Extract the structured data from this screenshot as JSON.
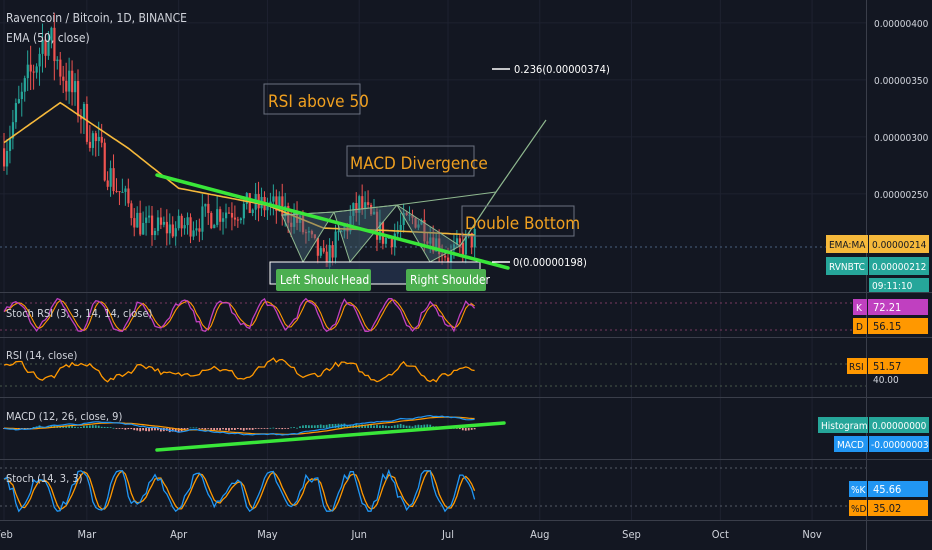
{
  "header": {
    "title": "Ravencoin / Bitcoin, 1D, BINANCE",
    "ema_label": "EMA (50, close)"
  },
  "colors": {
    "background": "#131722",
    "up": "#26a69a",
    "down": "#ef5350",
    "ema": "#f6b93b",
    "trendline": "#39e639",
    "annotation_text": "#f0a020",
    "fib_line": "#ffffff",
    "label_green": "#4caf50",
    "rsi": "#ff9800",
    "stoch_k": "#2196f3",
    "stoch_d": "#ff9800",
    "macd_line": "#2196f3",
    "macd_signal": "#ff9800"
  },
  "chart_data": [
    {
      "type": "candlestick",
      "title": "Ravencoin / Bitcoin, 1D, BINANCE",
      "ylim": [
        1.64e-06,
        4.2e-06
      ],
      "y_ticks": [
        "0.00000400",
        "0.00000350",
        "0.00000300",
        "0.00000250"
      ],
      "x_ticks": [
        "Feb",
        "Mar",
        "Apr",
        "May",
        "Jun",
        "Jul",
        "Aug",
        "Sep",
        "Oct",
        "Nov"
      ],
      "anchors": {
        "x": [
          "2019-02-01",
          "2019-02-15",
          "2019-03-01",
          "2019-03-10",
          "2019-03-20",
          "2019-04-01",
          "2019-04-15",
          "2019-05-01",
          "2019-05-10",
          "2019-05-20",
          "2019-06-01",
          "2019-06-10",
          "2019-06-20",
          "2019-07-01",
          "2019-07-10"
        ],
        "close": [
          2.9e-06,
          3.9e-06,
          3.1e-06,
          2.6e-06,
          2.2e-06,
          2.2e-06,
          2.35e-06,
          2.4e-06,
          2.3e-06,
          1.9e-06,
          2.4e-06,
          2.1e-06,
          2.3e-06,
          1.95e-06,
          2.12e-06
        ]
      },
      "ema": {
        "x": [
          "2019-02-01",
          "2019-02-20",
          "2019-03-15",
          "2019-04-01",
          "2019-05-01",
          "2019-05-20",
          "2019-06-10",
          "2019-07-10"
        ],
        "values": [
          2.95e-06,
          3.3e-06,
          2.9e-06,
          2.55e-06,
          2.4e-06,
          2.2e-06,
          2.18e-06,
          2.14e-06
        ]
      },
      "last_values": [
        {
          "label": "EMA:MA",
          "value": "0.00000214",
          "color": "#f6b93b"
        },
        {
          "label": "RVNBTC",
          "value": "0.00000212",
          "color": "#26a69a"
        }
      ],
      "countdown": "09:11:10",
      "fibonacci": [
        {
          "label": "0.236(0.00000374)"
        },
        {
          "label": "0(0.00000198)"
        }
      ],
      "annotations": {
        "rsi_above_50": "RSI above 50",
        "macd_divergence": "MACD Divergence",
        "double_bottom": "Double Bottom"
      },
      "pattern_labels": {
        "left": "Left Shoulde",
        "head": "Head",
        "right": "Right Shoulder"
      }
    },
    {
      "type": "line",
      "title": "Stoch RSI (3, 3, 14, 14, close)",
      "series": [
        {
          "name": "K",
          "value": "72.21"
        },
        {
          "name": "D",
          "value": "56.15"
        }
      ]
    },
    {
      "type": "line",
      "title": "RSI (14, close)",
      "series": [
        {
          "name": "RSI",
          "value": "51.57"
        }
      ],
      "levels": [
        "40.00"
      ]
    },
    {
      "type": "bar",
      "title": "MACD (12, 26, close, 9)",
      "series": [
        {
          "name": "Histogram",
          "value": "0.00000000"
        },
        {
          "name": "MACD",
          "value": "-0.00000003"
        }
      ]
    },
    {
      "type": "line",
      "title": "Stoch (14, 3, 3)",
      "series": [
        {
          "name": "%K",
          "value": "45.66"
        },
        {
          "name": "%D",
          "value": "35.02"
        }
      ]
    }
  ]
}
